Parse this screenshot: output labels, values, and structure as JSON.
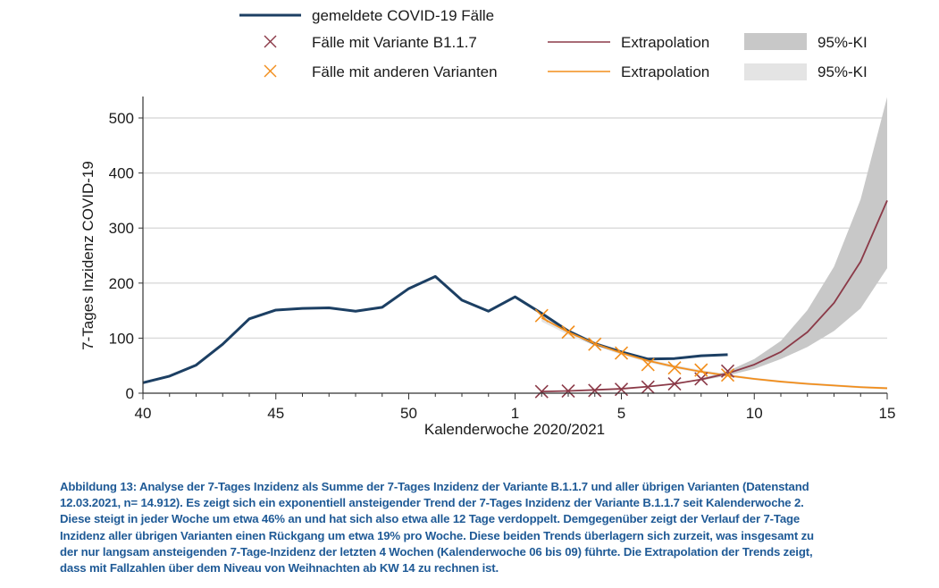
{
  "chart_data": {
    "type": "line",
    "title": "",
    "xlabel": "Kalenderwoche 2020/2021",
    "ylabel": "7-Tages Inzidenz COVID-19",
    "ylim": [
      0,
      540
    ],
    "yticks": [
      0,
      100,
      200,
      300,
      400,
      500
    ],
    "x_weeks_order": [
      40,
      41,
      42,
      43,
      44,
      45,
      46,
      47,
      48,
      49,
      50,
      51,
      52,
      53,
      1,
      2,
      3,
      4,
      5,
      6,
      7,
      8,
      9,
      10,
      11,
      12,
      13,
      14,
      15
    ],
    "xtick_labels": [
      "40",
      "45",
      "50",
      "1",
      "5",
      "10",
      "15"
    ],
    "xtick_label_weeks": [
      40,
      45,
      50,
      1,
      5,
      10,
      15
    ],
    "grid": "horizontal",
    "legend_position": "top",
    "legend": [
      {
        "key": "reported",
        "label": "gemeldete COVID-19 Fälle",
        "style": "line",
        "color": "#1c3f63"
      },
      {
        "key": "b117",
        "label": "Fälle mit Variante B1.1.7",
        "style": "marker-x",
        "color": "#8b3a48"
      },
      {
        "key": "b117_extrap",
        "label": "Extrapolation",
        "style": "line",
        "color": "#8b3a48"
      },
      {
        "key": "b117_ci",
        "label": "95%-KI",
        "style": "area",
        "color": "#c8c8c8"
      },
      {
        "key": "other",
        "label": "Fälle mit anderen Varianten",
        "style": "marker-x",
        "color": "#f28e1c"
      },
      {
        "key": "other_extrap",
        "label": "Extrapolation",
        "style": "line",
        "color": "#f28e1c"
      },
      {
        "key": "other_ci",
        "label": "95%-KI",
        "style": "area",
        "color": "#e4e4e4"
      }
    ],
    "series": [
      {
        "name": "gemeldete COVID-19 Fälle",
        "key": "reported",
        "weeks": [
          40,
          41,
          42,
          43,
          44,
          45,
          46,
          47,
          48,
          49,
          50,
          51,
          52,
          53,
          1,
          2,
          3,
          4,
          5,
          6,
          7,
          8,
          9
        ],
        "values": [
          19,
          31,
          51,
          89,
          135,
          151,
          154,
          155,
          149,
          156,
          190,
          212,
          169,
          149,
          175,
          145,
          113,
          90,
          75,
          62,
          63,
          68,
          70
        ]
      },
      {
        "name": "Fälle mit Variante B1.1.7",
        "key": "b117",
        "weeks": [
          2,
          3,
          4,
          5,
          6,
          7,
          8,
          9
        ],
        "values": [
          3,
          4,
          5,
          7,
          11,
          17,
          26,
          40
        ]
      },
      {
        "name": "Fälle mit anderen Varianten",
        "key": "other",
        "weeks": [
          2,
          3,
          4,
          5,
          6,
          7,
          8,
          9
        ],
        "values": [
          141,
          111,
          89,
          73,
          52,
          46,
          42,
          33
        ]
      },
      {
        "name": "Extrapolation B1.1.7",
        "key": "b117_extrap",
        "weeks": [
          2,
          3,
          4,
          5,
          6,
          7,
          8,
          9,
          10,
          11,
          12,
          13,
          14,
          15
        ],
        "values": [
          3,
          4,
          6,
          8,
          12,
          17,
          25,
          36,
          52,
          75,
          111,
          164,
          239,
          350
        ]
      },
      {
        "name": "95%-KI B1.1.7",
        "key": "b117_ci",
        "weeks": [
          8,
          9,
          10,
          11,
          12,
          13,
          14,
          15
        ],
        "lower": [
          23,
          32,
          44,
          62,
          84,
          113,
          154,
          227
        ],
        "upper": [
          27,
          40,
          62,
          95,
          151,
          230,
          352,
          538
        ]
      },
      {
        "name": "Extrapolation andere Varianten",
        "key": "other_extrap",
        "weeks": [
          2,
          3,
          4,
          5,
          6,
          7,
          8,
          9,
          10,
          11,
          12,
          13,
          14,
          15
        ],
        "values": [
          137,
          111,
          90,
          73,
          59,
          48,
          39,
          32,
          26,
          21,
          17,
          14,
          11,
          9
        ]
      },
      {
        "name": "95%-KI andere Varianten",
        "key": "other_ci",
        "weeks": [
          2,
          3,
          4,
          5,
          6,
          7,
          8,
          9,
          10,
          11,
          12,
          13,
          14,
          15
        ],
        "lower": [
          130,
          106,
          86,
          70,
          56,
          45,
          37,
          30,
          24,
          19,
          15,
          12,
          9,
          7
        ],
        "upper": [
          144,
          116,
          94,
          76,
          62,
          51,
          42,
          35,
          28,
          23,
          19,
          16,
          13,
          11
        ]
      }
    ]
  },
  "caption": {
    "lines": [
      "Abbildung 13: Analyse der 7-Tages Inzidenz als Summe der 7-Tages Inzidenz der Variante B.1.1.7 und aller übrigen Varianten (Datenstand",
      "12.03.2021, n= 14.912).  Es zeigt sich ein exponentiell ansteigender Trend der 7-Tages Inzidenz der Variante B.1.1.7 seit Kalenderwoche 2.",
      "Diese steigt in jeder Woche um etwa 46% an und hat sich also etwa alle 12 Tage verdoppelt. Demgegenüber zeigt der Verlauf der 7-Tage",
      "Inzidenz aller übrigen Varianten einen Rückgang um etwa 19% pro Woche. Diese beiden Trends überlagern sich zurzeit, was insgesamt zu",
      "der nur langsam ansteigenden 7-Tage-Inzidenz der letzten 4 Wochen (Kalenderwoche 06 bis 09) führte. Die Extrapolation der Trends zeigt,",
      "dass mit Fallzahlen über dem Niveau von Weihnachten ab KW 14 zu rechnen ist."
    ]
  }
}
